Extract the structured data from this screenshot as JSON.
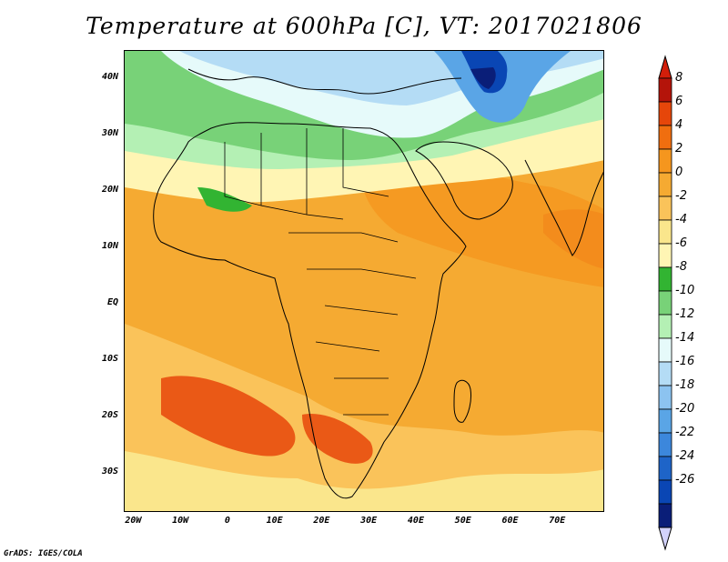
{
  "title": "Temperature at 600hPa [C], VT: 2017021806",
  "credit": "GrADS: IGES/COLA",
  "map": {
    "lon_range": [
      -22,
      80
    ],
    "lat_range": [
      -37,
      45
    ],
    "lat_ticks": [
      {
        "value": 40,
        "label": "40N"
      },
      {
        "value": 30,
        "label": "30N"
      },
      {
        "value": 20,
        "label": "20N"
      },
      {
        "value": 10,
        "label": "10N"
      },
      {
        "value": 0,
        "label": "EQ"
      },
      {
        "value": -10,
        "label": "10S"
      },
      {
        "value": -20,
        "label": "20S"
      },
      {
        "value": -30,
        "label": "30S"
      }
    ],
    "lon_ticks": [
      {
        "value": -20,
        "label": "20W"
      },
      {
        "value": -10,
        "label": "10W"
      },
      {
        "value": 0,
        "label": "0"
      },
      {
        "value": 10,
        "label": "10E"
      },
      {
        "value": 20,
        "label": "20E"
      },
      {
        "value": 30,
        "label": "30E"
      },
      {
        "value": 40,
        "label": "40E"
      },
      {
        "value": 50,
        "label": "50E"
      },
      {
        "value": 60,
        "label": "60E"
      },
      {
        "value": 70,
        "label": "70E"
      }
    ]
  },
  "colorbar": {
    "levels": [
      "8",
      "6",
      "4",
      "2",
      "0",
      "-2",
      "-4",
      "-6",
      "-8",
      "-10",
      "-12",
      "-14",
      "-16",
      "-18",
      "-20",
      "-22",
      "-24",
      "-26"
    ],
    "colors": [
      "#b4140a",
      "#e6460a",
      "#f06e0f",
      "#f5961e",
      "#f5aa32",
      "#fac35a",
      "#fae68c",
      "#fff5b4",
      "#32b432",
      "#78d278",
      "#b4f0b4",
      "#e6fafa",
      "#b4dcf5",
      "#8cc3f0",
      "#5aa5e6",
      "#3c87dc",
      "#1e64c8",
      "#0a46b4",
      "#0a1e78"
    ],
    "top_color": "#d21e0a",
    "bottom_color": "#d2d2fa"
  }
}
